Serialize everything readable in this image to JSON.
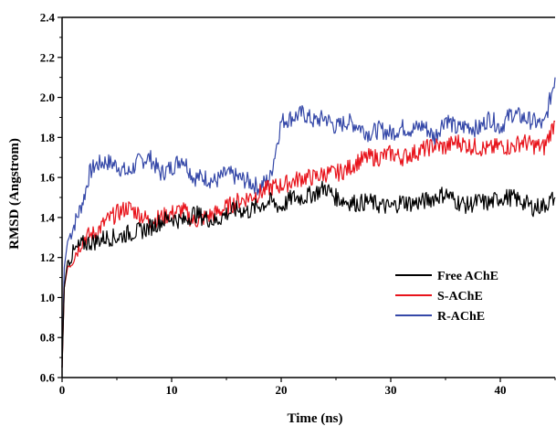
{
  "chart_data": {
    "type": "line",
    "title": "",
    "xlabel": "Time (ns)",
    "ylabel": "RMSD (Angstrom)",
    "xlim": [
      0,
      45
    ],
    "ylim": [
      0.6,
      2.4
    ],
    "xticks": [
      0,
      10,
      20,
      30,
      40
    ],
    "xtick_labels": [
      "0",
      "10",
      "20",
      "30",
      "40"
    ],
    "yticks": [
      0.6,
      0.8,
      1.0,
      1.2,
      1.4,
      1.6,
      1.8,
      2.0,
      2.2,
      2.4
    ],
    "ytick_labels": [
      "0.6",
      "0.8",
      "1.0",
      "1.2",
      "1.4",
      "1.6",
      "1.8",
      "2.0",
      "2.2",
      "2.4"
    ],
    "grid": false,
    "legend_position": "lower-right",
    "series": [
      {
        "name": "Free AChE",
        "color": "#000000",
        "x": [
          0,
          0.2,
          0.5,
          1,
          1.5,
          2,
          3,
          4,
          5,
          6,
          7,
          8,
          9,
          10,
          11,
          12,
          13,
          14,
          15,
          16,
          17,
          18,
          19,
          20,
          21,
          22,
          23,
          24,
          25,
          26,
          27,
          28,
          29,
          30,
          31,
          32,
          33,
          34,
          35,
          36,
          37,
          38,
          39,
          40,
          41,
          42,
          43,
          44,
          45
        ],
        "y": [
          0.65,
          1.05,
          1.18,
          1.22,
          1.25,
          1.27,
          1.28,
          1.3,
          1.3,
          1.32,
          1.33,
          1.35,
          1.38,
          1.4,
          1.38,
          1.42,
          1.4,
          1.38,
          1.42,
          1.44,
          1.43,
          1.46,
          1.48,
          1.45,
          1.5,
          1.5,
          1.52,
          1.55,
          1.5,
          1.48,
          1.47,
          1.48,
          1.46,
          1.45,
          1.48,
          1.47,
          1.48,
          1.5,
          1.52,
          1.48,
          1.46,
          1.48,
          1.47,
          1.5,
          1.5,
          1.48,
          1.45,
          1.46,
          1.5
        ]
      },
      {
        "name": "S-AChE",
        "color": "#e8141c",
        "x": [
          0,
          0.2,
          0.5,
          1,
          1.5,
          2,
          3,
          4,
          5,
          6,
          7,
          8,
          9,
          10,
          11,
          12,
          13,
          14,
          15,
          16,
          17,
          18,
          19,
          20,
          21,
          22,
          23,
          24,
          25,
          26,
          27,
          28,
          29,
          30,
          31,
          32,
          33,
          34,
          35,
          36,
          37,
          38,
          39,
          40,
          41,
          42,
          43,
          44,
          45
        ],
        "y": [
          0.65,
          1.05,
          1.15,
          1.2,
          1.25,
          1.3,
          1.32,
          1.38,
          1.42,
          1.45,
          1.42,
          1.38,
          1.4,
          1.42,
          1.44,
          1.38,
          1.4,
          1.42,
          1.45,
          1.48,
          1.5,
          1.52,
          1.55,
          1.56,
          1.58,
          1.6,
          1.6,
          1.62,
          1.62,
          1.64,
          1.68,
          1.7,
          1.7,
          1.72,
          1.7,
          1.72,
          1.74,
          1.76,
          1.75,
          1.78,
          1.76,
          1.75,
          1.74,
          1.76,
          1.75,
          1.78,
          1.76,
          1.75,
          1.88
        ]
      },
      {
        "name": "R-AChE",
        "color": "#3548a8",
        "x": [
          0,
          0.2,
          0.5,
          1,
          1.5,
          2,
          2.5,
          3,
          4,
          5,
          6,
          7,
          8,
          9,
          10,
          11,
          12,
          13,
          14,
          15,
          16,
          17,
          18,
          19,
          20,
          21,
          22,
          23,
          24,
          25,
          26,
          27,
          28,
          29,
          30,
          31,
          32,
          33,
          34,
          35,
          36,
          37,
          38,
          39,
          40,
          41,
          42,
          43,
          44,
          45
        ],
        "y": [
          0.65,
          1.15,
          1.28,
          1.35,
          1.42,
          1.5,
          1.62,
          1.66,
          1.68,
          1.66,
          1.62,
          1.68,
          1.7,
          1.62,
          1.65,
          1.7,
          1.6,
          1.6,
          1.58,
          1.62,
          1.6,
          1.58,
          1.55,
          1.6,
          1.88,
          1.9,
          1.92,
          1.88,
          1.9,
          1.85,
          1.88,
          1.86,
          1.82,
          1.84,
          1.82,
          1.85,
          1.84,
          1.86,
          1.8,
          1.9,
          1.84,
          1.86,
          1.84,
          1.9,
          1.85,
          1.92,
          1.9,
          1.88,
          1.86,
          2.1
        ]
      }
    ]
  }
}
